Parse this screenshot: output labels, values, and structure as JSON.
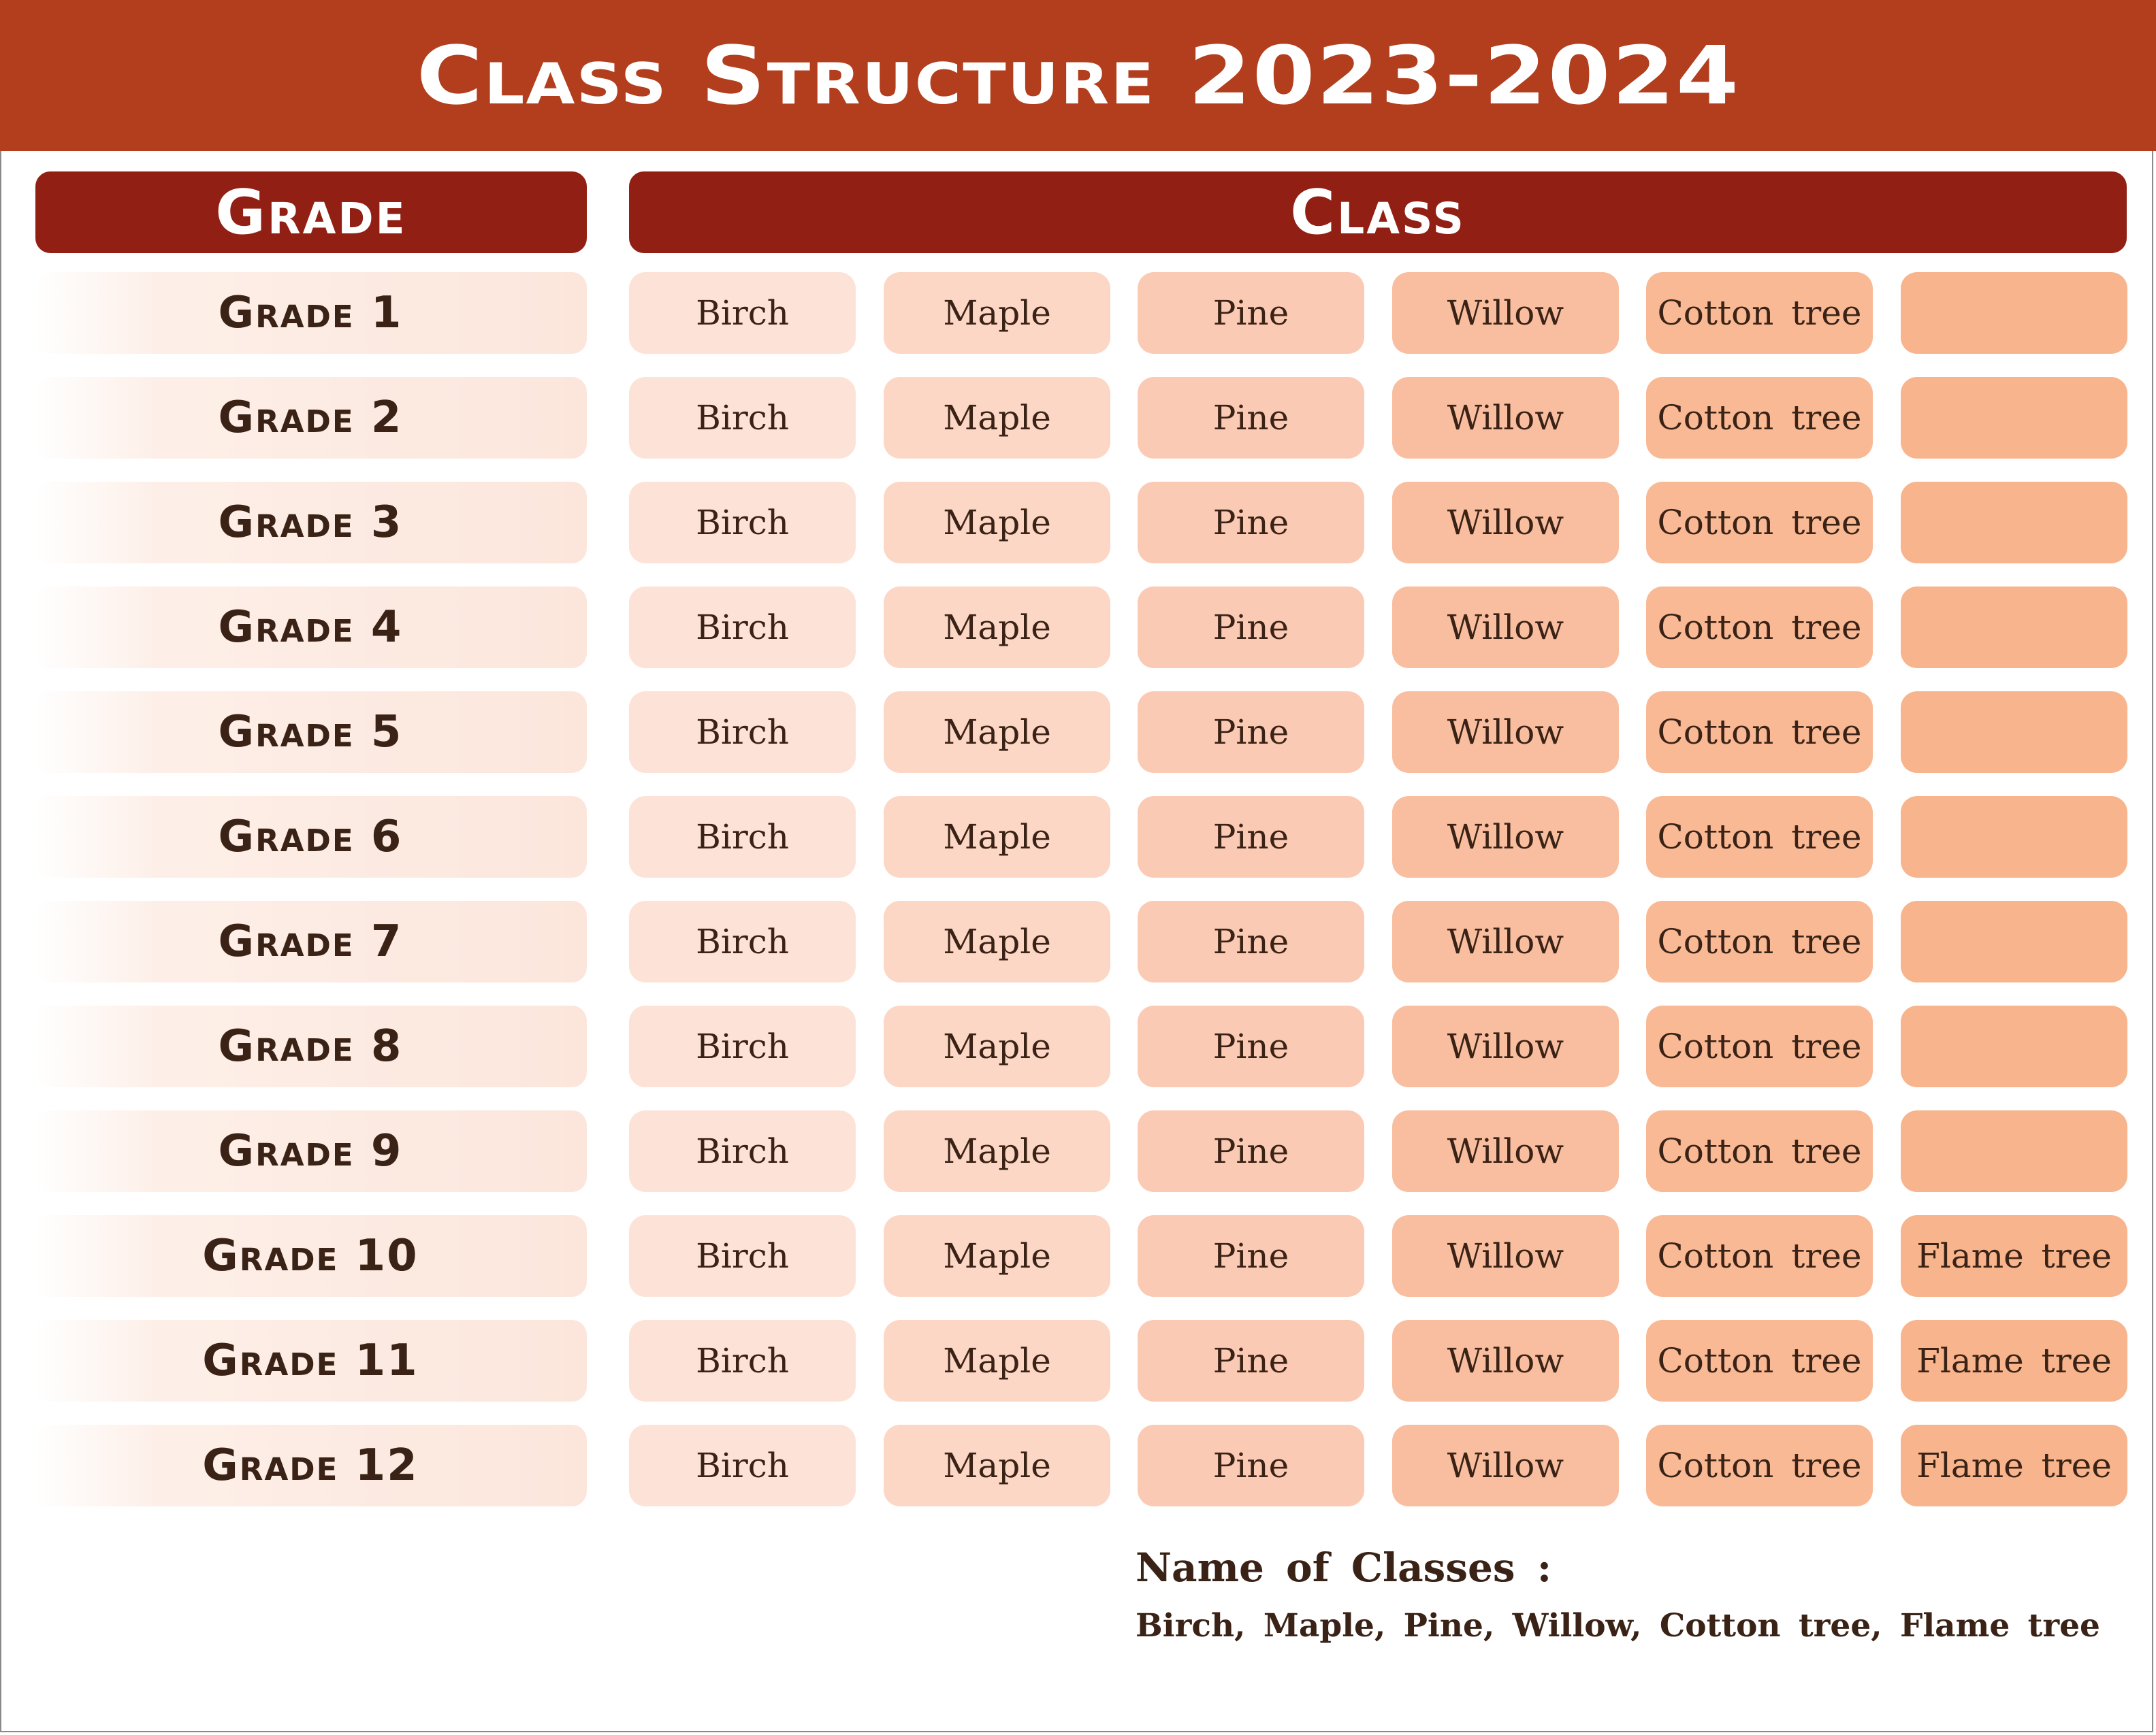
{
  "title": "Class Structure 2023-2024",
  "headers": {
    "grade": "Grade",
    "class": "Class"
  },
  "colors": {
    "title_bar": "#b23e1d",
    "header_pill": "#921f13",
    "text_dark": "#3a2316",
    "column_fills": [
      "#fde3d7",
      "#fcd7c6",
      "#fbcab4",
      "#f9be9f",
      "#f9b995",
      "#f8b48c"
    ]
  },
  "rows": [
    {
      "grade": "Grade 1",
      "classes": [
        "Birch",
        "Maple",
        "Pine",
        "Willow",
        "Cotton tree",
        ""
      ]
    },
    {
      "grade": "Grade 2",
      "classes": [
        "Birch",
        "Maple",
        "Pine",
        "Willow",
        "Cotton tree",
        ""
      ]
    },
    {
      "grade": "Grade 3",
      "classes": [
        "Birch",
        "Maple",
        "Pine",
        "Willow",
        "Cotton tree",
        ""
      ]
    },
    {
      "grade": "Grade 4",
      "classes": [
        "Birch",
        "Maple",
        "Pine",
        "Willow",
        "Cotton tree",
        ""
      ]
    },
    {
      "grade": "Grade 5",
      "classes": [
        "Birch",
        "Maple",
        "Pine",
        "Willow",
        "Cotton tree",
        ""
      ]
    },
    {
      "grade": "Grade 6",
      "classes": [
        "Birch",
        "Maple",
        "Pine",
        "Willow",
        "Cotton tree",
        ""
      ]
    },
    {
      "grade": "Grade 7",
      "classes": [
        "Birch",
        "Maple",
        "Pine",
        "Willow",
        "Cotton tree",
        ""
      ]
    },
    {
      "grade": "Grade 8",
      "classes": [
        "Birch",
        "Maple",
        "Pine",
        "Willow",
        "Cotton tree",
        ""
      ]
    },
    {
      "grade": "Grade 9",
      "classes": [
        "Birch",
        "Maple",
        "Pine",
        "Willow",
        "Cotton tree",
        ""
      ]
    },
    {
      "grade": "Grade 10",
      "classes": [
        "Birch",
        "Maple",
        "Pine",
        "Willow",
        "Cotton tree",
        "Flame tree"
      ]
    },
    {
      "grade": "Grade 11",
      "classes": [
        "Birch",
        "Maple",
        "Pine",
        "Willow",
        "Cotton tree",
        "Flame tree"
      ]
    },
    {
      "grade": "Grade 12",
      "classes": [
        "Birch",
        "Maple",
        "Pine",
        "Willow",
        "Cotton tree",
        "Flame tree"
      ]
    }
  ],
  "footer": {
    "heading": "Name of Classes :",
    "list": "Birch, Maple, Pine, Willow, Cotton tree, Flame tree"
  }
}
